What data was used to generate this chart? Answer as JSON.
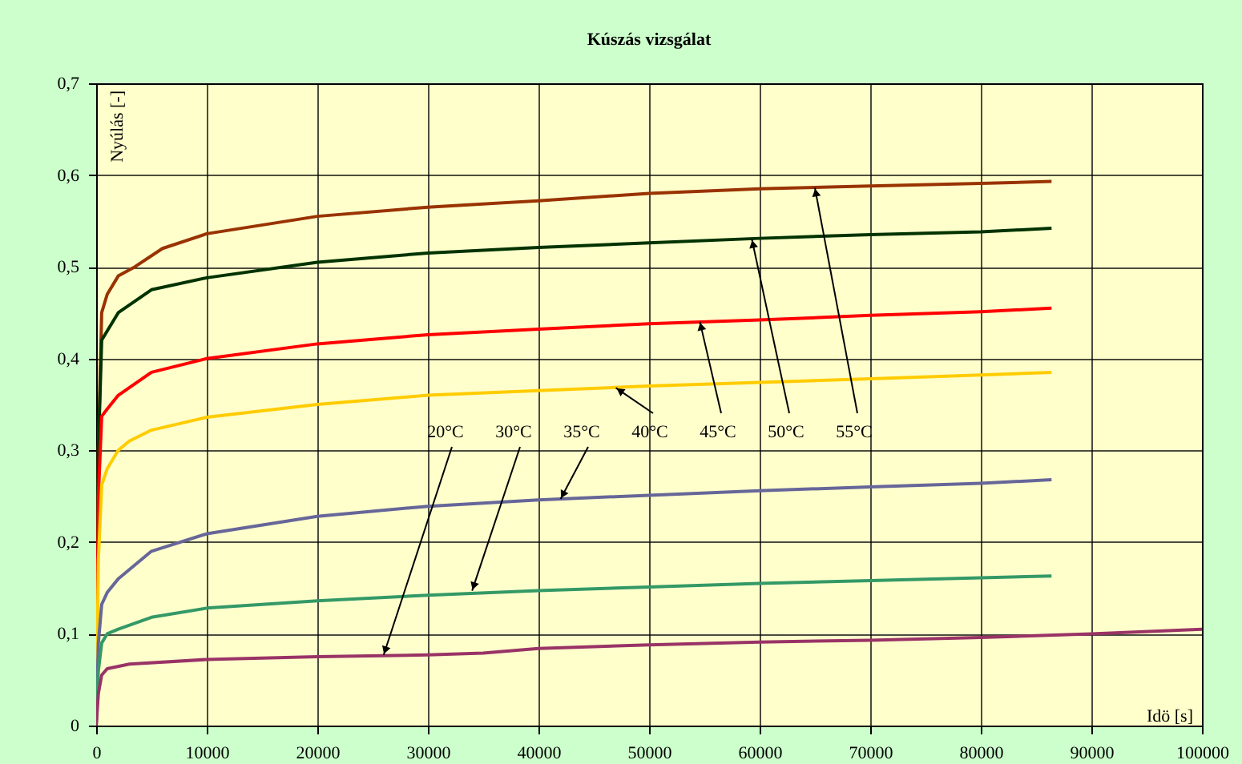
{
  "chart_data": {
    "type": "line",
    "title": "Kúszás vizsgálat",
    "xlabel": "Idö [s]",
    "ylabel": "Nyúlás [-]",
    "xlim": [
      0,
      100000
    ],
    "ylim": [
      0,
      0.7
    ],
    "xticks": [
      0,
      10000,
      20000,
      30000,
      40000,
      50000,
      60000,
      70000,
      80000,
      90000,
      100000
    ],
    "yticks": [
      {
        "value": 0,
        "label": "0"
      },
      {
        "value": 0.1,
        "label": "0,1"
      },
      {
        "value": 0.2,
        "label": "0,2"
      },
      {
        "value": 0.3,
        "label": "0,3"
      },
      {
        "value": 0.4,
        "label": "0,4"
      },
      {
        "value": 0.5,
        "label": "0,5"
      },
      {
        "value": 0.6,
        "label": "0,6"
      },
      {
        "value": 0.7,
        "label": "0,7"
      }
    ],
    "grid": true,
    "series": [
      {
        "color": "#993300",
        "x": [
          0,
          200,
          500,
          1000,
          2000,
          3500,
          6000,
          10000,
          20000,
          30000,
          40000,
          50000,
          60000,
          70000,
          80000,
          86400
        ],
        "values": [
          0,
          0.3,
          0.45,
          0.47,
          0.49,
          0.5,
          0.52,
          0.536,
          0.555,
          0.565,
          0.572,
          0.58,
          0.585,
          0.588,
          0.591,
          0.593
        ]
      },
      {
        "color": "#003300",
        "x": [
          0,
          200,
          500,
          1000,
          2000,
          5000,
          10000,
          20000,
          30000,
          40000,
          50000,
          60000,
          70000,
          80000,
          86400
        ],
        "values": [
          0,
          0.3,
          0.42,
          0.43,
          0.45,
          0.475,
          0.488,
          0.505,
          0.515,
          0.521,
          0.526,
          0.531,
          0.535,
          0.538,
          0.542
        ]
      },
      {
        "color": "#ff0000",
        "x": [
          0,
          200,
          500,
          1000,
          2000,
          5000,
          10000,
          20000,
          30000,
          40000,
          50000,
          60000,
          70000,
          80000,
          86400
        ],
        "values": [
          0,
          0.25,
          0.337,
          0.345,
          0.36,
          0.385,
          0.4,
          0.416,
          0.426,
          0.432,
          0.438,
          0.442,
          0.447,
          0.451,
          0.455
        ]
      },
      {
        "color": "#ffcc00",
        "x": [
          0,
          200,
          500,
          1000,
          2000,
          3000,
          5000,
          10000,
          20000,
          30000,
          40000,
          50000,
          60000,
          70000,
          80000,
          86400
        ],
        "values": [
          0,
          0.18,
          0.262,
          0.28,
          0.3,
          0.31,
          0.322,
          0.336,
          0.35,
          0.36,
          0.365,
          0.37,
          0.374,
          0.378,
          0.382,
          0.385
        ]
      },
      {
        "color": "#666699",
        "x": [
          0,
          200,
          500,
          1000,
          2000,
          5000,
          10000,
          20000,
          30000,
          40000,
          50000,
          60000,
          70000,
          80000,
          86400
        ],
        "values": [
          0,
          0.09,
          0.132,
          0.145,
          0.16,
          0.19,
          0.209,
          0.228,
          0.239,
          0.246,
          0.251,
          0.256,
          0.26,
          0.264,
          0.268
        ]
      },
      {
        "color": "#339966",
        "x": [
          0,
          200,
          500,
          1000,
          2000,
          5000,
          10000,
          20000,
          30000,
          40000,
          50000,
          60000,
          70000,
          80000,
          86400
        ],
        "values": [
          0,
          0.06,
          0.09,
          0.1,
          0.105,
          0.118,
          0.128,
          0.136,
          0.142,
          0.147,
          0.151,
          0.155,
          0.158,
          0.161,
          0.163
        ]
      },
      {
        "color": "#993366",
        "x": [
          0,
          200,
          500,
          1000,
          3000,
          10000,
          20000,
          30000,
          35000,
          40000,
          50000,
          60000,
          70000,
          80000,
          90000,
          100000
        ],
        "values": [
          0,
          0.035,
          0.055,
          0.062,
          0.067,
          0.072,
          0.075,
          0.077,
          0.079,
          0.084,
          0.088,
          0.091,
          0.093,
          0.096,
          0.1,
          0.105
        ]
      }
    ],
    "annotations": [
      {
        "text": "20°C",
        "x": 26000,
        "y": 0.077
      },
      {
        "text": "30°C",
        "x": 34000,
        "y": 0.147
      },
      {
        "text": "35°C",
        "x": 42000,
        "y": 0.247
      },
      {
        "text": "40°C",
        "x": 47000,
        "y": 0.368
      },
      {
        "text": "45°C",
        "x": 54600,
        "y": 0.44
      },
      {
        "text": "50°C",
        "x": 59300,
        "y": 0.53
      },
      {
        "text": "55°C",
        "x": 65000,
        "y": 0.586
      }
    ]
  }
}
